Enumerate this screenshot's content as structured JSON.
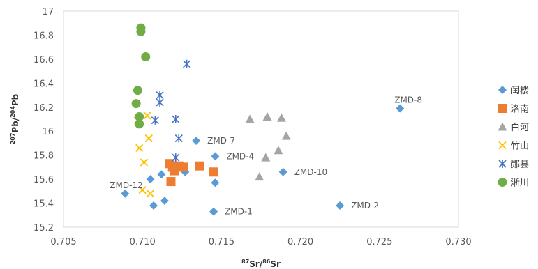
{
  "chart_data": {
    "type": "scatter",
    "title": "",
    "xlabel": "87Sr/86Sr",
    "ylabel": "207Pb/204Pb",
    "xlim": [
      0.705,
      0.73
    ],
    "ylim": [
      15.2,
      17.0
    ],
    "xticks": [
      "0.705",
      "0.710",
      "0.715",
      "0.720",
      "0.725",
      "0.730"
    ],
    "yticks": [
      "15.2",
      "15.4",
      "15.6",
      "15.8",
      "16",
      "16.2",
      "16.4",
      "16.6",
      "16.8",
      "17"
    ],
    "legend_position": "right",
    "grid": false,
    "series": [
      {
        "name": "闰楼",
        "marker": "diamond",
        "color": "#5b9bd5",
        "points": [
          [
            0.7089,
            15.48
          ],
          [
            0.7105,
            15.6
          ],
          [
            0.7107,
            15.38
          ],
          [
            0.7112,
            15.64
          ],
          [
            0.7114,
            15.42
          ],
          [
            0.7119,
            15.68
          ],
          [
            0.7127,
            15.66
          ],
          [
            0.7134,
            15.92
          ],
          [
            0.7146,
            15.79
          ],
          [
            0.7146,
            15.57
          ],
          [
            0.7145,
            15.33
          ],
          [
            0.7189,
            15.66
          ],
          [
            0.7225,
            15.38
          ],
          [
            0.7263,
            16.19
          ]
        ]
      },
      {
        "name": "洛南",
        "marker": "square",
        "color": "#ed7d31",
        "points": [
          [
            0.7117,
            15.73
          ],
          [
            0.7118,
            15.58
          ],
          [
            0.7119,
            15.7
          ],
          [
            0.712,
            15.67
          ],
          [
            0.7123,
            15.71
          ],
          [
            0.7126,
            15.7
          ],
          [
            0.7136,
            15.71
          ],
          [
            0.7145,
            15.66
          ]
        ]
      },
      {
        "name": "白河",
        "marker": "triangle",
        "color": "#a5a5a5",
        "points": [
          [
            0.7168,
            16.1
          ],
          [
            0.7179,
            16.12
          ],
          [
            0.7188,
            16.11
          ],
          [
            0.7191,
            15.96
          ],
          [
            0.7186,
            15.84
          ],
          [
            0.7178,
            15.78
          ],
          [
            0.7174,
            15.62
          ]
        ]
      },
      {
        "name": "竹山",
        "marker": "x",
        "color": "#ffc000",
        "points": [
          [
            0.7097,
            16.09
          ],
          [
            0.7103,
            16.13
          ],
          [
            0.7104,
            15.94
          ],
          [
            0.7098,
            15.86
          ],
          [
            0.7101,
            15.74
          ],
          [
            0.71,
            15.51
          ],
          [
            0.7105,
            15.48
          ]
        ]
      },
      {
        "name": "郧县",
        "marker": "star",
        "color": "#4472c4",
        "points": [
          [
            0.7128,
            16.56
          ],
          [
            0.7111,
            16.3
          ],
          [
            0.7111,
            16.24
          ],
          [
            0.7121,
            16.1
          ],
          [
            0.7108,
            16.09
          ],
          [
            0.7123,
            15.94
          ],
          [
            0.7121,
            15.78
          ]
        ]
      },
      {
        "name": "淅川",
        "marker": "circle",
        "color": "#70ad47",
        "points": [
          [
            0.7099,
            16.86
          ],
          [
            0.7099,
            16.83
          ],
          [
            0.7102,
            16.62
          ],
          [
            0.7097,
            16.34
          ],
          [
            0.7096,
            16.23
          ],
          [
            0.7098,
            16.12
          ],
          [
            0.7098,
            16.06
          ]
        ]
      }
    ],
    "annotations": [
      {
        "text": "ZMD-8",
        "x": 0.7263,
        "y": 16.19
      },
      {
        "text": "ZMD-7",
        "x": 0.7134,
        "y": 15.92
      },
      {
        "text": "ZMD-4",
        "x": 0.7146,
        "y": 15.79
      },
      {
        "text": "ZMD-10",
        "x": 0.7189,
        "y": 15.66
      },
      {
        "text": "ZMD-12",
        "x": 0.7089,
        "y": 15.48
      },
      {
        "text": "ZMD-1",
        "x": 0.7145,
        "y": 15.33
      },
      {
        "text": "ZMD-2",
        "x": 0.7225,
        "y": 15.38
      }
    ]
  }
}
